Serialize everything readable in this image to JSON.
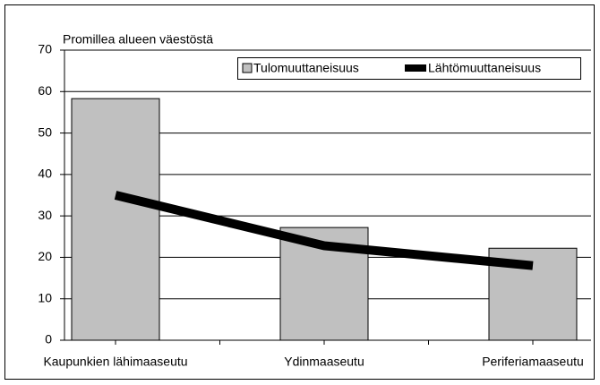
{
  "chart_data": {
    "type": "bar_line",
    "axis_title": "Promillea alueen väestöstä",
    "categories": [
      "Kaupunkien lähimaaseutu",
      "Ydinmaaseutu",
      "Periferiamaaseutu"
    ],
    "series": [
      {
        "name": "Tulomuuttaneisuus",
        "type": "bar",
        "color": "#c0c0c0",
        "values": [
          58.3,
          27.2,
          22.2
        ]
      },
      {
        "name": "Lähtömuuttaneisuus",
        "type": "line",
        "color": "#000000",
        "values": [
          35,
          22.8,
          18
        ]
      }
    ],
    "ylim": [
      0,
      70
    ],
    "yticks": [
      0,
      10,
      20,
      30,
      40,
      50,
      60,
      70
    ],
    "grid": true,
    "legend": "top-right"
  }
}
